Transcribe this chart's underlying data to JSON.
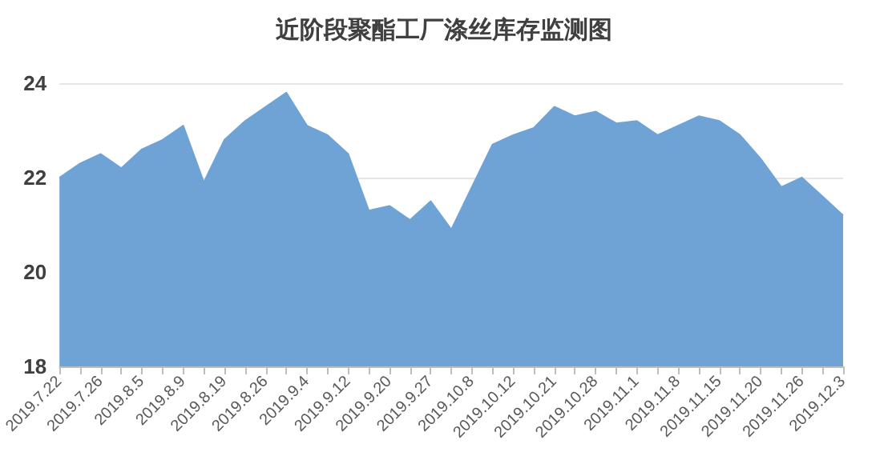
{
  "chart_data": {
    "type": "area",
    "title": "近阶段聚酯工厂涤丝库存监测图",
    "categories": [
      "2019.7.22",
      null,
      "2019.7.26",
      null,
      "2019.8.5",
      null,
      "2019.8.9",
      null,
      "2019.8.19",
      null,
      "2019.8.26",
      null,
      "2019.9.4",
      null,
      "2019.9.12",
      null,
      "2019.9.20",
      null,
      "2019.9.27",
      null,
      "2019.10.8",
      null,
      "2019.10.12",
      null,
      "2019.10.21",
      null,
      "2019.10.28",
      null,
      "2019.11.1",
      null,
      "2019.11.8",
      null,
      "2019.11.15",
      null,
      "2019.11.20",
      null,
      "2019.11.26",
      null,
      "2019.12.3"
    ],
    "series": [
      {
        "color": "#6fa3d5",
        "values": [
          22.0,
          22.3,
          22.5,
          22.2,
          22.6,
          22.8,
          23.1,
          21.9,
          22.8,
          23.2,
          23.5,
          23.8,
          23.1,
          22.9,
          22.5,
          21.3,
          21.4,
          21.1,
          21.5,
          20.9,
          21.8,
          22.7,
          22.9,
          23.05,
          23.5,
          23.3,
          23.4,
          23.15,
          23.2,
          22.9,
          23.1,
          23.3,
          23.2,
          22.9,
          22.4,
          21.8,
          22.0,
          21.6,
          21.2
        ]
      }
    ],
    "ylim": [
      18,
      24
    ],
    "yticks": [
      18,
      20,
      22,
      24
    ],
    "grid": "y",
    "marker": "none"
  }
}
